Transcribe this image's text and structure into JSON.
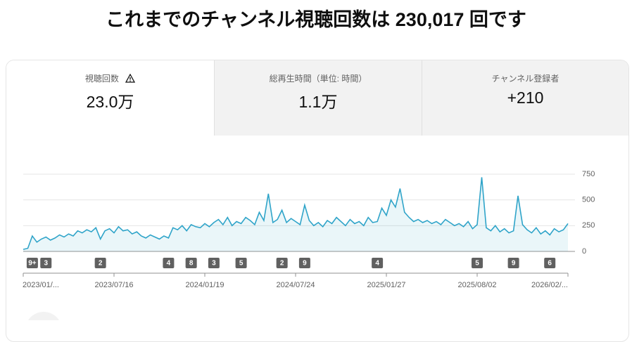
{
  "header": {
    "title": "これまでのチャンネル視聴回数は 230,017 回です"
  },
  "tabs": [
    {
      "label": "視聴回数",
      "value": "23.0万"
    },
    {
      "label": "総再生時間（単位: 時間）",
      "value": "1.1万"
    },
    {
      "label": "チャンネル登録者",
      "value": "+210"
    }
  ],
  "chart_data": {
    "type": "line",
    "color": "#2fa4c9",
    "categories": [
      "2023/01/...",
      null,
      null,
      null,
      null,
      null,
      null,
      null,
      null,
      null,
      null,
      null,
      null,
      null,
      null,
      null,
      null,
      null,
      null,
      null,
      "2023/07/16",
      null,
      null,
      null,
      null,
      null,
      null,
      null,
      null,
      null,
      null,
      null,
      null,
      null,
      null,
      null,
      null,
      null,
      null,
      null,
      "2024/01/19",
      null,
      null,
      null,
      null,
      null,
      null,
      null,
      null,
      null,
      null,
      null,
      null,
      null,
      null,
      null,
      null,
      null,
      null,
      null,
      "2024/07/24",
      null,
      null,
      null,
      null,
      null,
      null,
      null,
      null,
      null,
      null,
      null,
      null,
      null,
      null,
      null,
      null,
      null,
      null,
      null,
      "2025/01/27",
      null,
      null,
      null,
      null,
      null,
      null,
      null,
      null,
      null,
      null,
      null,
      null,
      null,
      null,
      null,
      null,
      null,
      null,
      null,
      "2025/08/02",
      null,
      null,
      null,
      null,
      null,
      null,
      null,
      null,
      null,
      null,
      null,
      null,
      null,
      null,
      null,
      null,
      null,
      null,
      null,
      "2026/02/..."
    ],
    "values": [
      20,
      30,
      150,
      90,
      120,
      140,
      110,
      130,
      160,
      140,
      170,
      150,
      200,
      180,
      210,
      190,
      230,
      120,
      200,
      220,
      180,
      240,
      200,
      210,
      170,
      190,
      150,
      130,
      160,
      140,
      120,
      150,
      130,
      230,
      210,
      250,
      200,
      260,
      240,
      230,
      270,
      240,
      280,
      310,
      260,
      330,
      250,
      290,
      270,
      330,
      300,
      260,
      380,
      300,
      560,
      280,
      310,
      400,
      280,
      320,
      290,
      260,
      450,
      300,
      250,
      280,
      240,
      300,
      270,
      330,
      290,
      250,
      310,
      270,
      290,
      250,
      330,
      280,
      290,
      420,
      350,
      500,
      430,
      610,
      380,
      330,
      290,
      310,
      280,
      300,
      270,
      290,
      260,
      310,
      280,
      250,
      270,
      240,
      290,
      220,
      260,
      720,
      230,
      200,
      250,
      190,
      220,
      180,
      200,
      540,
      260,
      210,
      180,
      230,
      170,
      200,
      160,
      220,
      190,
      210,
      270
    ],
    "ylim": [
      0,
      750
    ],
    "yticks": [
      0,
      250,
      500,
      750
    ],
    "grid": true,
    "markers": [
      {
        "index": 2,
        "label": "9+"
      },
      {
        "index": 5,
        "label": "3"
      },
      {
        "index": 17,
        "label": "2"
      },
      {
        "index": 32,
        "label": "4"
      },
      {
        "index": 37,
        "label": "8"
      },
      {
        "index": 42,
        "label": "3"
      },
      {
        "index": 48,
        "label": "5"
      },
      {
        "index": 57,
        "label": "2"
      },
      {
        "index": 62,
        "label": "9"
      },
      {
        "index": 78,
        "label": "4"
      },
      {
        "index": 100,
        "label": "5"
      },
      {
        "index": 108,
        "label": "9"
      },
      {
        "index": 116,
        "label": "6"
      }
    ]
  }
}
